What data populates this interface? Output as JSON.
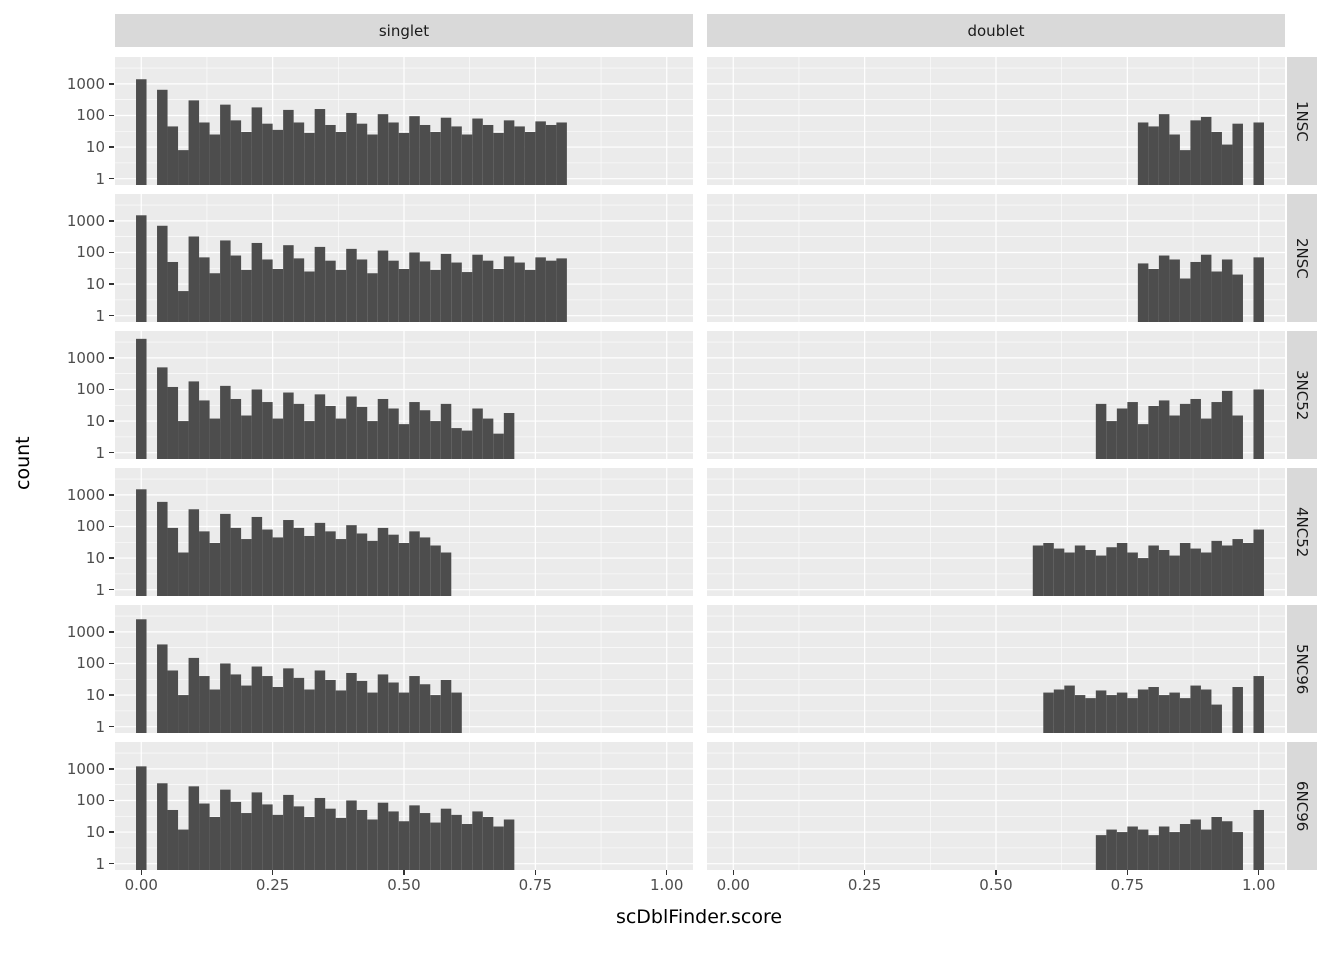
{
  "chart_data": {
    "type": "bar",
    "subtype": "faceted_histogram",
    "title": "",
    "xlabel": "scDblFinder.score",
    "ylabel": "count",
    "y_scale": "log10",
    "grid": true,
    "legend": "none",
    "facet_columns": [
      "singlet",
      "doublet"
    ],
    "facet_rows": [
      "1NSC",
      "2NSC",
      "3NC52",
      "4NC52",
      "5NC96",
      "6NC96"
    ],
    "x_ticks": {
      "values": [
        0,
        0.25,
        0.5,
        0.75,
        1.0
      ],
      "labels": [
        "0.00",
        "0.25",
        "0.50",
        "0.75",
        "1.00"
      ]
    },
    "y_ticks": {
      "values": [
        1000,
        100,
        10,
        1
      ],
      "labels": [
        "1000",
        "100",
        "10",
        "1"
      ]
    },
    "x_range": [
      -0.05,
      1.05
    ],
    "y_log_range": [
      -0.2,
      3.85
    ],
    "bin_width": 0.02,
    "bar_color": "#4d4d4d",
    "panel_bg": "#ebebeb",
    "strip_bg": "#d9d9d9",
    "grid_color": "#ffffff",
    "panels": [
      {
        "row": "1NSC",
        "col": "singlet",
        "x0": 0.0,
        "counts": [
          1400,
          0,
          650,
          45,
          8,
          300,
          60,
          25,
          220,
          70,
          30,
          180,
          55,
          35,
          150,
          60,
          28,
          160,
          50,
          30,
          120,
          55,
          25,
          110,
          60,
          28,
          95,
          50,
          30,
          85,
          45,
          25,
          80,
          50,
          28,
          70,
          45,
          30,
          65,
          50,
          60
        ]
      },
      {
        "row": "1NSC",
        "col": "doublet",
        "x0": 0.78,
        "counts": [
          60,
          45,
          110,
          25,
          8,
          70,
          90,
          30,
          12,
          55,
          0,
          60
        ]
      },
      {
        "row": "2NSC",
        "col": "singlet",
        "x0": 0.0,
        "counts": [
          1500,
          0,
          700,
          50,
          6,
          320,
          70,
          22,
          240,
          80,
          28,
          200,
          60,
          30,
          170,
          65,
          25,
          150,
          55,
          28,
          130,
          60,
          22,
          115,
          55,
          30,
          100,
          52,
          28,
          90,
          48,
          24,
          85,
          55,
          30,
          75,
          48,
          28,
          70,
          55,
          65
        ]
      },
      {
        "row": "2NSC",
        "col": "doublet",
        "x0": 0.78,
        "counts": [
          45,
          30,
          80,
          60,
          15,
          50,
          85,
          25,
          60,
          20,
          0,
          70
        ]
      },
      {
        "row": "3NC52",
        "col": "singlet",
        "x0": 0.0,
        "counts": [
          4000,
          0,
          500,
          120,
          10,
          180,
          45,
          12,
          130,
          50,
          15,
          100,
          40,
          12,
          80,
          35,
          10,
          70,
          30,
          12,
          60,
          28,
          10,
          50,
          25,
          8,
          40,
          22,
          10,
          35,
          6,
          5,
          25,
          12,
          4,
          18
        ]
      },
      {
        "row": "3NC52",
        "col": "doublet",
        "x0": 0.7,
        "counts": [
          35,
          10,
          25,
          40,
          8,
          30,
          45,
          15,
          35,
          50,
          12,
          40,
          90,
          15,
          0,
          100
        ]
      },
      {
        "row": "4NC52",
        "col": "singlet",
        "x0": 0.0,
        "counts": [
          1500,
          0,
          600,
          90,
          15,
          350,
          70,
          30,
          250,
          90,
          40,
          200,
          80,
          45,
          160,
          90,
          50,
          130,
          70,
          40,
          110,
          60,
          35,
          90,
          55,
          30,
          70,
          45,
          25,
          15
        ]
      },
      {
        "row": "4NC52",
        "col": "doublet",
        "x0": 0.58,
        "counts": [
          25,
          30,
          20,
          15,
          25,
          18,
          12,
          22,
          30,
          15,
          10,
          25,
          18,
          12,
          30,
          20,
          15,
          35,
          25,
          40,
          30,
          80
        ]
      },
      {
        "row": "5NC96",
        "col": "singlet",
        "x0": 0.0,
        "counts": [
          2500,
          0,
          400,
          60,
          10,
          150,
          40,
          15,
          100,
          45,
          20,
          80,
          40,
          18,
          70,
          35,
          15,
          60,
          30,
          14,
          50,
          28,
          12,
          45,
          25,
          12,
          40,
          22,
          10,
          30,
          12
        ]
      },
      {
        "row": "5NC96",
        "col": "doublet",
        "x0": 0.6,
        "counts": [
          12,
          15,
          20,
          10,
          8,
          14,
          10,
          12,
          8,
          15,
          18,
          10,
          12,
          8,
          20,
          15,
          5,
          0,
          18,
          0,
          40
        ]
      },
      {
        "row": "6NC96",
        "col": "singlet",
        "x0": 0.0,
        "counts": [
          1200,
          0,
          350,
          50,
          12,
          280,
          80,
          30,
          220,
          90,
          40,
          180,
          75,
          35,
          150,
          65,
          30,
          120,
          55,
          28,
          100,
          50,
          25,
          85,
          45,
          22,
          70,
          40,
          20,
          55,
          35,
          18,
          45,
          30,
          15,
          25
        ]
      },
      {
        "row": "6NC96",
        "col": "doublet",
        "x0": 0.7,
        "counts": [
          8,
          12,
          10,
          15,
          12,
          8,
          15,
          10,
          18,
          25,
          12,
          30,
          22,
          10,
          0,
          50
        ]
      }
    ]
  }
}
